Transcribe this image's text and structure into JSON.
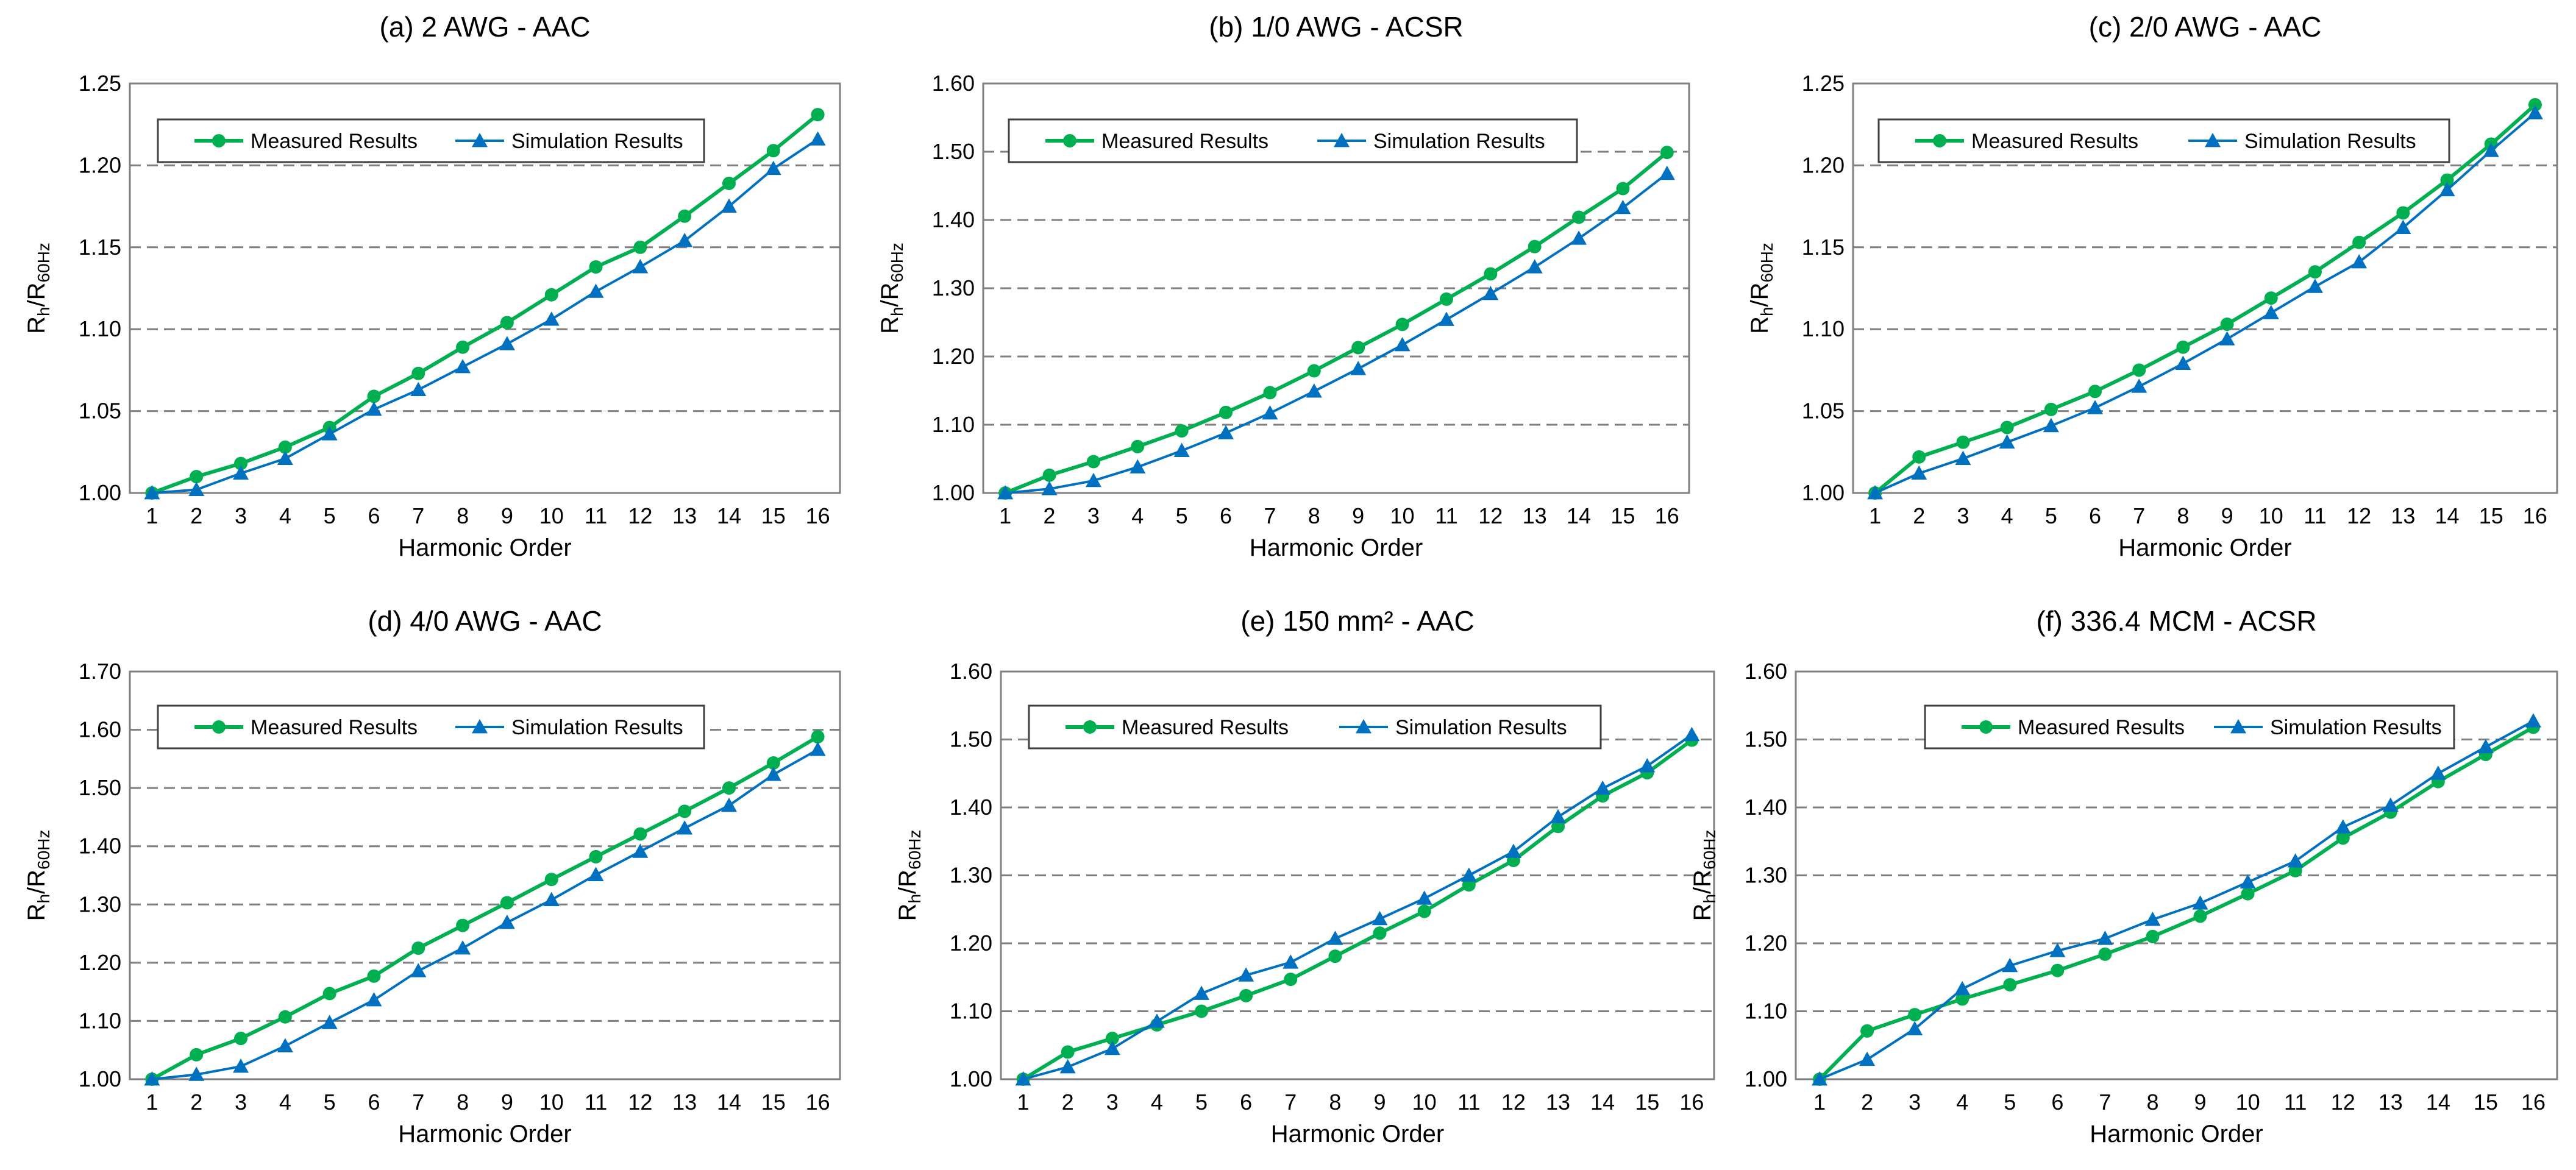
{
  "figure": {
    "colors": {
      "measured": "#00b050",
      "simulation": "#0070c0"
    }
  },
  "chart_data": [
    {
      "type": "line",
      "title": "(a) 2 AWG - AAC",
      "xlabel": "Harmonic Order",
      "ylabel_main": "R",
      "ylabel_sub": "h",
      "ylabel_mid": "/R",
      "ylabel_sub2": "60Hz",
      "ylim": [
        1.0,
        1.25
      ],
      "ystep": 0.05,
      "ytick_labels": [
        "1.00",
        "1.05",
        "1.10",
        "1.15",
        "1.20",
        "1.25"
      ],
      "categories": [
        "1",
        "2",
        "3",
        "4",
        "5",
        "6",
        "7",
        "8",
        "9",
        "10",
        "11",
        "12",
        "13",
        "14",
        "15",
        "16"
      ],
      "series": [
        {
          "name": "Measured Results",
          "marker": "circle",
          "values": [
            1.0,
            1.01,
            1.018,
            1.028,
            1.04,
            1.059,
            1.073,
            1.089,
            1.104,
            1.121,
            1.138,
            1.15,
            1.169,
            1.189,
            1.209,
            1.231
          ]
        },
        {
          "name": "Simulation Results",
          "marker": "triangle",
          "values": [
            1.0,
            1.002,
            1.012,
            1.021,
            1.036,
            1.051,
            1.063,
            1.077,
            1.091,
            1.106,
            1.123,
            1.138,
            1.154,
            1.175,
            1.198,
            1.216
          ]
        }
      ],
      "legend": "top"
    },
    {
      "type": "line",
      "title": "(b) 1/0 AWG - ACSR",
      "xlabel": "Harmonic Order",
      "ylabel_main": "R",
      "ylabel_sub": "h",
      "ylabel_mid": "/R",
      "ylabel_sub2": "60Hz",
      "ylim": [
        1.0,
        1.6
      ],
      "ystep": 0.1,
      "ytick_labels": [
        "1.00",
        "1.10",
        "1.20",
        "1.30",
        "1.40",
        "1.50",
        "1.60"
      ],
      "categories": [
        "1",
        "2",
        "3",
        "4",
        "5",
        "6",
        "7",
        "8",
        "9",
        "10",
        "11",
        "12",
        "13",
        "14",
        "15",
        "16"
      ],
      "series": [
        {
          "name": "Measured Results",
          "marker": "circle",
          "values": [
            1.0,
            1.026,
            1.046,
            1.068,
            1.091,
            1.118,
            1.147,
            1.179,
            1.213,
            1.247,
            1.284,
            1.321,
            1.361,
            1.404,
            1.446,
            1.499
          ]
        },
        {
          "name": "Simulation Results",
          "marker": "triangle",
          "values": [
            1.0,
            1.006,
            1.018,
            1.038,
            1.062,
            1.088,
            1.117,
            1.149,
            1.182,
            1.217,
            1.254,
            1.292,
            1.331,
            1.373,
            1.418,
            1.468
          ]
        }
      ],
      "legend": "top"
    },
    {
      "type": "line",
      "title": "(c) 2/0 AWG - AAC",
      "xlabel": "Harmonic Order",
      "ylabel_main": "R",
      "ylabel_sub": "h",
      "ylabel_mid": "/R",
      "ylabel_sub2": "60Hz",
      "ylim": [
        1.0,
        1.25
      ],
      "ystep": 0.05,
      "ytick_labels": [
        "1.00",
        "1.05",
        "1.10",
        "1.15",
        "1.20",
        "1.25"
      ],
      "categories": [
        "1",
        "2",
        "3",
        "4",
        "5",
        "6",
        "7",
        "8",
        "9",
        "10",
        "11",
        "12",
        "13",
        "14",
        "15",
        "16"
      ],
      "series": [
        {
          "name": "Measured Results",
          "marker": "circle",
          "values": [
            1.0,
            1.022,
            1.031,
            1.04,
            1.051,
            1.062,
            1.075,
            1.089,
            1.103,
            1.119,
            1.135,
            1.153,
            1.171,
            1.191,
            1.213,
            1.237
          ]
        },
        {
          "name": "Simulation Results",
          "marker": "triangle",
          "values": [
            1.0,
            1.012,
            1.021,
            1.031,
            1.041,
            1.052,
            1.065,
            1.079,
            1.094,
            1.11,
            1.126,
            1.141,
            1.162,
            1.185,
            1.209,
            1.232
          ]
        }
      ],
      "legend": "top"
    },
    {
      "type": "line",
      "title": "(d) 4/0 AWG - AAC",
      "xlabel": "Harmonic Order",
      "ylabel_main": "R",
      "ylabel_sub": "h",
      "ylabel_mid": "/R",
      "ylabel_sub2": "60Hz",
      "ylim": [
        1.0,
        1.7
      ],
      "ystep": 0.1,
      "ytick_labels": [
        "1.00",
        "1.10",
        "1.20",
        "1.30",
        "1.40",
        "1.50",
        "1.60",
        "1.70"
      ],
      "categories": [
        "1",
        "2",
        "3",
        "4",
        "5",
        "6",
        "7",
        "8",
        "9",
        "10",
        "11",
        "12",
        "13",
        "14",
        "15",
        "16"
      ],
      "series": [
        {
          "name": "Measured Results",
          "marker": "circle",
          "values": [
            1.0,
            1.042,
            1.07,
            1.107,
            1.147,
            1.177,
            1.225,
            1.264,
            1.303,
            1.343,
            1.382,
            1.421,
            1.46,
            1.5,
            1.543,
            1.588
          ]
        },
        {
          "name": "Simulation Results",
          "marker": "triangle",
          "values": [
            1.0,
            1.008,
            1.022,
            1.057,
            1.097,
            1.136,
            1.186,
            1.225,
            1.269,
            1.308,
            1.351,
            1.391,
            1.431,
            1.47,
            1.523,
            1.566
          ]
        }
      ],
      "legend": "top"
    },
    {
      "type": "line",
      "title": "(e) 150 mm² - AAC",
      "xlabel": "Harmonic Order",
      "ylabel_main": "R",
      "ylabel_sub": "h",
      "ylabel_mid": "/R",
      "ylabel_sub2": "60Hz",
      "ylim": [
        1.0,
        1.6
      ],
      "ystep": 0.1,
      "ytick_labels": [
        "1.00",
        "1.10",
        "1.20",
        "1.30",
        "1.40",
        "1.50",
        "1.60"
      ],
      "categories": [
        "1",
        "2",
        "3",
        "4",
        "5",
        "6",
        "7",
        "8",
        "9",
        "10",
        "11",
        "12",
        "13",
        "14",
        "15",
        "16"
      ],
      "series": [
        {
          "name": "Measured Results",
          "marker": "circle",
          "values": [
            1.0,
            1.04,
            1.06,
            1.08,
            1.1,
            1.123,
            1.147,
            1.181,
            1.215,
            1.247,
            1.286,
            1.322,
            1.372,
            1.417,
            1.451,
            1.499
          ]
        },
        {
          "name": "Simulation Results",
          "marker": "triangle",
          "values": [
            1.0,
            1.018,
            1.045,
            1.085,
            1.126,
            1.153,
            1.172,
            1.207,
            1.236,
            1.266,
            1.3,
            1.335,
            1.386,
            1.428,
            1.461,
            1.507
          ]
        }
      ],
      "legend": "top"
    },
    {
      "type": "line",
      "title": "(f) 336.4 MCM - ACSR",
      "xlabel": "Harmonic Order",
      "ylabel_main": "R",
      "ylabel_sub": "h",
      "ylabel_mid": "/R",
      "ylabel_sub2": "60Hz",
      "ylim": [
        1.0,
        1.6
      ],
      "ystep": 0.1,
      "ytick_labels": [
        "1.00",
        "1.10",
        "1.20",
        "1.30",
        "1.40",
        "1.50",
        "1.60"
      ],
      "categories": [
        "1",
        "2",
        "3",
        "4",
        "5",
        "6",
        "7",
        "8",
        "9",
        "10",
        "11",
        "12",
        "13",
        "14",
        "15",
        "16"
      ],
      "series": [
        {
          "name": "Measured Results",
          "marker": "circle",
          "values": [
            1.0,
            1.071,
            1.095,
            1.118,
            1.139,
            1.16,
            1.184,
            1.21,
            1.24,
            1.273,
            1.307,
            1.355,
            1.393,
            1.438,
            1.478,
            1.518
          ]
        },
        {
          "name": "Simulation Results",
          "marker": "triangle",
          "values": [
            1.0,
            1.029,
            1.074,
            1.133,
            1.167,
            1.189,
            1.207,
            1.235,
            1.259,
            1.29,
            1.321,
            1.371,
            1.403,
            1.45,
            1.489,
            1.527
          ]
        }
      ],
      "legend": "top"
    }
  ]
}
